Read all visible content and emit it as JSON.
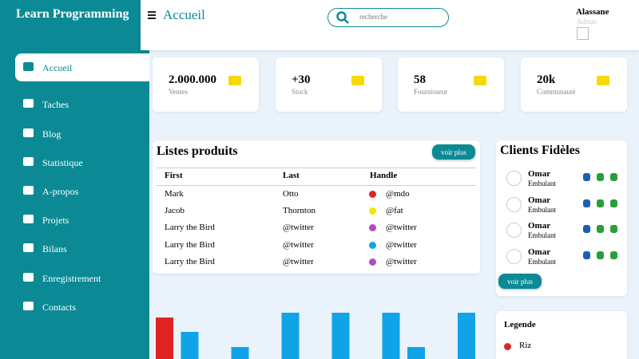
{
  "sidebar": {
    "brand": "Learn Programming",
    "menu": [
      "Accueil",
      "Taches",
      "Blog",
      "Statistique",
      "A-propos",
      "Projets",
      "Bilans",
      "Enregistrement",
      "Contacts"
    ]
  },
  "header": {
    "title": "Accueil",
    "search_placeholder": "recherche",
    "user": {
      "name": "Alassane",
      "role": "Admin"
    }
  },
  "cards": [
    {
      "value": "2.000.000",
      "label": "Ventes"
    },
    {
      "value": "+30",
      "label": "Stock"
    },
    {
      "value": "58",
      "label": "Fournisseur"
    },
    {
      "value": "20k",
      "label": "Communauté"
    }
  ],
  "products": {
    "title": "Listes produits",
    "button": "voir plus",
    "columns": [
      "First",
      "Last",
      "Handle"
    ],
    "rows": [
      [
        "Mark",
        "Otto",
        "@mdo"
      ],
      [
        "Jacob",
        "Thornton",
        "@fat"
      ],
      [
        "Larry the Bird",
        "@twitter",
        "@twitter"
      ],
      [
        "Larry the Bird",
        "@twitter",
        "@twitter"
      ],
      [
        "Larry the Bird",
        "@twitter",
        "@twitter"
      ]
    ],
    "handle_colors": [
      "#e02424",
      "#f2e600",
      "#b04ac8",
      "#10a3e8",
      "#b04ac8"
    ]
  },
  "clients": {
    "title": "Clients Fidèles",
    "button": "voir plus",
    "items": [
      {
        "name": "Omar",
        "role": "Embulant"
      },
      {
        "name": "Omar",
        "role": "Embulant"
      },
      {
        "name": "Omar",
        "role": "Embulant"
      },
      {
        "name": "Omar",
        "role": "Embulant"
      }
    ]
  },
  "chart_data": {
    "type": "bar",
    "values": [
      52,
      34,
      null,
      15,
      null,
      58,
      null,
      58,
      null,
      58,
      15,
      null,
      58
    ],
    "colors": [
      "#e02424",
      "#10a3e8",
      null,
      "#10a3e8",
      null,
      "#10a3e8",
      null,
      "#10a3e8",
      null,
      "#10a3e8",
      "#10a3e8",
      null,
      "#10a3e8"
    ],
    "ylim": [
      0,
      60
    ]
  },
  "legend": {
    "title": "Legende",
    "items": [
      {
        "label": "Riz",
        "color": "#e02424"
      }
    ]
  }
}
